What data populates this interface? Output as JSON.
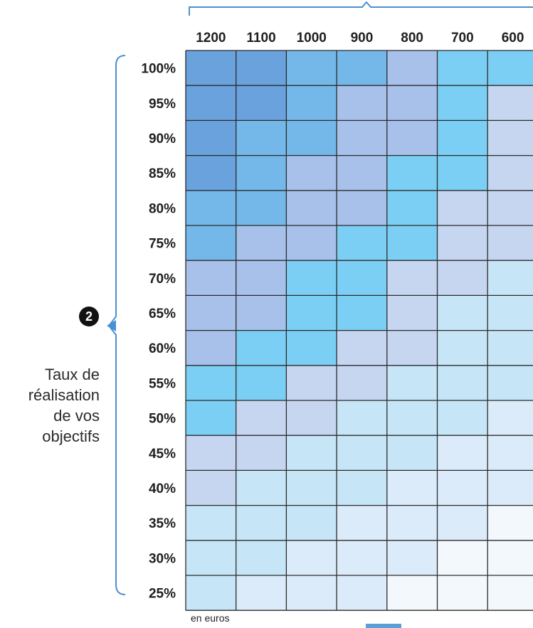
{
  "chart_data": {
    "type": "heatmap",
    "columns": [
      "1200",
      "1100",
      "1000",
      "900",
      "800",
      "700",
      "600"
    ],
    "rows": [
      "100%",
      "95%",
      "90%",
      "85%",
      "80%",
      "75%",
      "70%",
      "65%",
      "60%",
      "55%",
      "50%",
      "45%",
      "40%",
      "35%",
      "30%",
      "25%"
    ],
    "ylabel_lines": [
      "Taux de",
      "réalisation",
      "de vos",
      "objectifs"
    ],
    "marker": "2",
    "unit_note": "en euros",
    "level_colors": [
      "#f3f8fd",
      "#dcebf9",
      "#c6e6f8",
      "#c6d6f1",
      "#a9dcf4",
      "#a7c1ea",
      "#7ccff4",
      "#74b8ea",
      "#6aa2de"
    ],
    "levels": [
      [
        8,
        8,
        7,
        7,
        5,
        6,
        6
      ],
      [
        8,
        8,
        7,
        5,
        5,
        6,
        3
      ],
      [
        8,
        7,
        7,
        5,
        5,
        6,
        3
      ],
      [
        8,
        7,
        5,
        5,
        6,
        6,
        3
      ],
      [
        7,
        7,
        5,
        5,
        6,
        3,
        3
      ],
      [
        7,
        5,
        5,
        6,
        6,
        3,
        3
      ],
      [
        5,
        5,
        6,
        6,
        3,
        3,
        2
      ],
      [
        5,
        5,
        6,
        6,
        3,
        2,
        2
      ],
      [
        5,
        6,
        6,
        3,
        3,
        2,
        2
      ],
      [
        6,
        6,
        3,
        3,
        2,
        2,
        2
      ],
      [
        6,
        3,
        3,
        2,
        2,
        2,
        1
      ],
      [
        3,
        3,
        2,
        2,
        2,
        1,
        1
      ],
      [
        3,
        2,
        2,
        2,
        1,
        1,
        1
      ],
      [
        2,
        2,
        2,
        1,
        1,
        1,
        0
      ],
      [
        2,
        2,
        1,
        1,
        1,
        0,
        0
      ],
      [
        2,
        1,
        1,
        1,
        0,
        0,
        0
      ]
    ]
  }
}
